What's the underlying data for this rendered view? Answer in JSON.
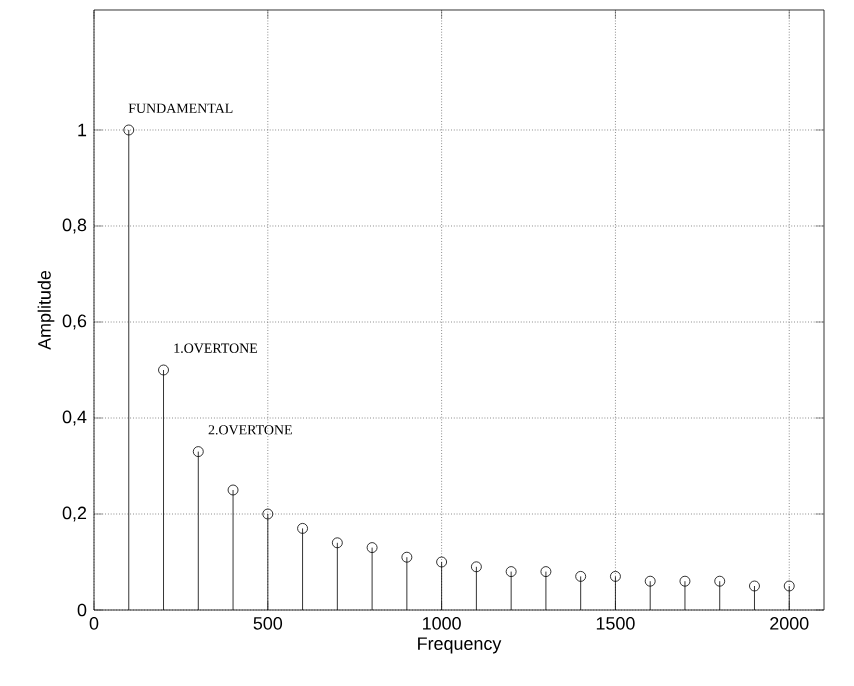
{
  "chart_data": {
    "type": "lollipop",
    "xlabel": "Frequency",
    "ylabel": "Amplitude",
    "x": [
      100,
      200,
      300,
      400,
      500,
      600,
      700,
      800,
      900,
      1000,
      1100,
      1200,
      1300,
      1400,
      1500,
      1600,
      1700,
      1800,
      1900,
      2000
    ],
    "series": [
      {
        "color": "#000000",
        "values": [
          1,
          0.5,
          0.33,
          0.25,
          0.2,
          0.17,
          0.14,
          0.13,
          0.11,
          0.1,
          0.09,
          0.08,
          0.08,
          0.07,
          0.07,
          0.06,
          0.06,
          0.06,
          0.05,
          0.05
        ]
      }
    ],
    "xlim": [
      0,
      2100
    ],
    "ylim": [
      0,
      1.25
    ],
    "xticks": [
      0,
      500,
      1000,
      1500,
      2000
    ],
    "yticks": [
      0,
      {
        "value": 0.2,
        "label": "0,2"
      },
      {
        "value": 0.4,
        "label": "0,4"
      },
      {
        "value": 0.6,
        "label": "0,6"
      },
      {
        "value": 0.8,
        "label": "0,8"
      },
      1
    ],
    "grid": true,
    "marker": "circle",
    "annotations": [
      {
        "text": "FUNDAMENTAL",
        "x": 100,
        "y": 1
      },
      {
        "text": "1.OVERTONE",
        "x": 200,
        "y": 0.5
      },
      {
        "text": "2.OVERTONE",
        "x": 300,
        "y": 0.33
      }
    ]
  }
}
